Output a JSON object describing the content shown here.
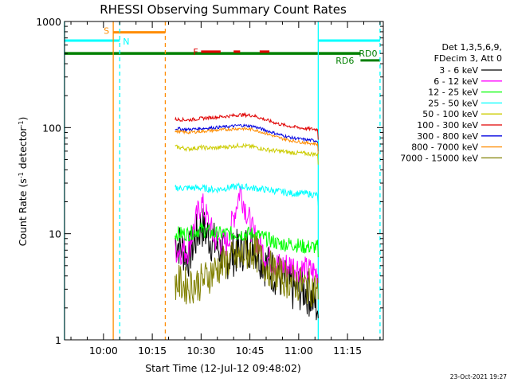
{
  "chart_data": {
    "type": "line",
    "title": "RHESSI Observing Summary Count Rates",
    "xlabel": "Start Time (12-Jul-12 09:48:02)",
    "ylabel_main": "Count Rate (s",
    "ylabel_sup1": "-1",
    "ylabel_mid": " detector",
    "ylabel_sup2": "-1",
    "ylabel_end": ")",
    "y_scale": "log",
    "ylim": [
      1,
      1000
    ],
    "xlim": [
      "09:48",
      "11:26"
    ],
    "x_ticks": [
      "10:00",
      "10:15",
      "10:30",
      "10:45",
      "11:00",
      "11:15"
    ],
    "y_ticks": [
      "1",
      "10",
      "100",
      "1000"
    ],
    "grid": false,
    "legend_position": "right",
    "legend_header": [
      "Det 1,3,5,6,9,",
      "FDecim 3, Att 0"
    ],
    "series": [
      {
        "name": "3 - 6 keV",
        "color": "#000000",
        "x": [
          "10:22",
          "10:26",
          "10:30",
          "10:34",
          "10:38",
          "10:42",
          "10:46",
          "10:50",
          "10:54",
          "10:58",
          "11:02",
          "11:06"
        ],
        "values": [
          9,
          6,
          12,
          8,
          6,
          7,
          8,
          5,
          4,
          3,
          3,
          2
        ]
      },
      {
        "name": "6 - 12 keV",
        "color": "#ff00ff",
        "x": [
          "10:22",
          "10:26",
          "10:30",
          "10:34",
          "10:38",
          "10:42",
          "10:46",
          "10:50",
          "10:54",
          "10:58",
          "11:02",
          "11:06"
        ],
        "values": [
          7,
          7,
          20,
          9,
          8,
          26,
          10,
          6,
          5,
          5,
          4.5,
          4.3
        ]
      },
      {
        "name": "12 - 25 keV",
        "color": "#00ff00",
        "x": [
          "10:22",
          "10:26",
          "10:30",
          "10:34",
          "10:38",
          "10:42",
          "10:46",
          "10:50",
          "10:54",
          "10:58",
          "11:02",
          "11:06"
        ],
        "values": [
          10,
          10,
          11,
          10,
          10,
          10,
          10,
          9,
          8,
          8,
          7.5,
          7.5
        ]
      },
      {
        "name": "25 - 50 keV",
        "color": "#00ffff",
        "x": [
          "10:22",
          "10:26",
          "10:30",
          "10:34",
          "10:38",
          "10:42",
          "10:46",
          "10:50",
          "10:54",
          "10:58",
          "11:02",
          "11:06"
        ],
        "values": [
          27,
          27,
          27,
          26,
          27,
          28,
          27,
          26,
          25,
          24,
          24,
          23
        ]
      },
      {
        "name": "50 - 100 keV",
        "color": "#cccc00",
        "x": [
          "10:22",
          "10:26",
          "10:30",
          "10:34",
          "10:38",
          "10:42",
          "10:46",
          "10:50",
          "10:54",
          "10:58",
          "11:02",
          "11:06"
        ],
        "values": [
          66,
          63,
          65,
          64,
          66,
          68,
          66,
          62,
          60,
          58,
          57,
          56
        ]
      },
      {
        "name": "100 - 300 keV",
        "color": "#e00000",
        "x": [
          "10:22",
          "10:26",
          "10:30",
          "10:34",
          "10:38",
          "10:42",
          "10:46",
          "10:50",
          "10:54",
          "10:58",
          "11:02",
          "11:06"
        ],
        "values": [
          120,
          118,
          122,
          125,
          128,
          132,
          130,
          118,
          108,
          102,
          98,
          96
        ]
      },
      {
        "name": "300 - 800 keV",
        "color": "#0000e0",
        "x": [
          "10:22",
          "10:26",
          "10:30",
          "10:34",
          "10:38",
          "10:42",
          "10:46",
          "10:50",
          "10:54",
          "10:58",
          "11:02",
          "11:06"
        ],
        "values": [
          98,
          96,
          98,
          100,
          102,
          105,
          103,
          94,
          86,
          80,
          77,
          75
        ]
      },
      {
        "name": "800 - 7000 keV",
        "color": "#ff8c00",
        "x": [
          "10:22",
          "10:26",
          "10:30",
          "10:34",
          "10:38",
          "10:42",
          "10:46",
          "10:50",
          "10:54",
          "10:58",
          "11:02",
          "11:06"
        ],
        "values": [
          92,
          90,
          92,
          94,
          96,
          98,
          96,
          88,
          80,
          75,
          72,
          70
        ]
      },
      {
        "name": "7000 - 15000 keV",
        "color": "#808000",
        "x": [
          "10:22",
          "10:26",
          "10:30",
          "10:34",
          "10:38",
          "10:42",
          "10:46",
          "10:50",
          "10:54",
          "10:58",
          "11:02",
          "11:06"
        ],
        "values": [
          3.5,
          3.2,
          3.5,
          4.5,
          5.5,
          6,
          7,
          5,
          4,
          3.5,
          3.2,
          3
        ]
      }
    ],
    "annotations": {
      "S": {
        "label": "S",
        "color": "#ff8c00",
        "start": "10:03",
        "end": "10:19",
        "y": 790
      },
      "N": {
        "label": "N",
        "color": "#00ffff",
        "start": "09:48",
        "end": "10:05",
        "y": 660
      },
      "F": {
        "label": "F",
        "color": "#e00000",
        "segments": [
          [
            "10:30",
            "10:36"
          ],
          [
            "10:40",
            "10:42"
          ],
          [
            "10:48",
            "10:51"
          ]
        ],
        "y": 520
      },
      "RD0": {
        "label": "RD0",
        "color": "#008000",
        "start": "09:48",
        "end": "11:19",
        "y": 500
      },
      "RD6": {
        "label": "RD6",
        "color": "#008000",
        "start": "11:19",
        "end": "11:25",
        "y": 430
      },
      "N_right": {
        "color": "#00ffff",
        "start": "11:06",
        "end": "11:25",
        "y": 660
      }
    },
    "vertical_lines": [
      {
        "at": "09:48",
        "color": "#00ffff",
        "style": "solid"
      },
      {
        "at": "10:03",
        "color": "#ff8c00",
        "style": "solid"
      },
      {
        "at": "10:05",
        "color": "#00ffff",
        "style": "dashed"
      },
      {
        "at": "10:19",
        "color": "#ff8c00",
        "style": "dashed"
      },
      {
        "at": "11:06",
        "color": "#00ffff",
        "style": "solid"
      },
      {
        "at": "11:25",
        "color": "#00ffff",
        "style": "dashed"
      }
    ]
  },
  "footer": {
    "timestamp": "23-Oct-2021 19:27"
  }
}
